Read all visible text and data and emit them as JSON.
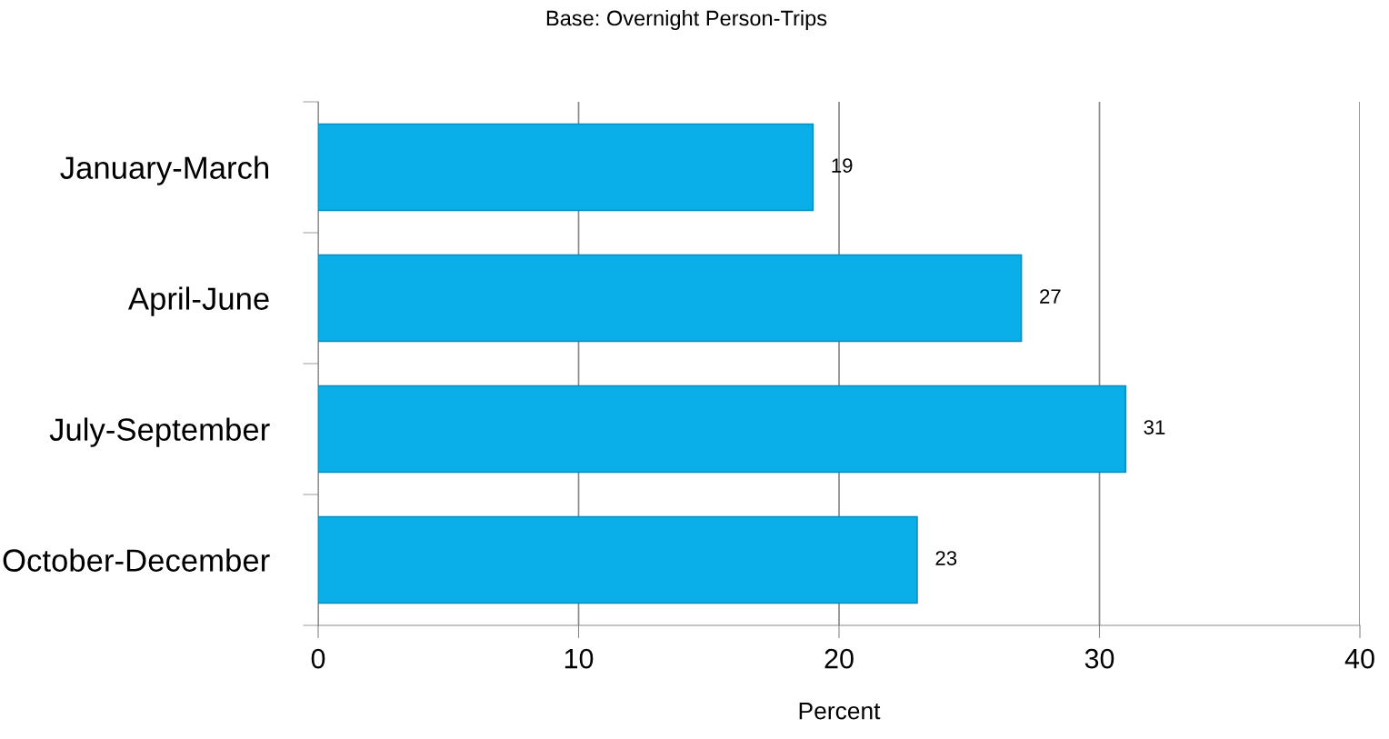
{
  "chart_data": {
    "type": "bar",
    "orientation": "horizontal",
    "title": "Base: Overnight Person-Trips",
    "xlabel": "Percent",
    "categories": [
      "January-March",
      "April-June",
      "July-September",
      "October-December"
    ],
    "values": [
      19,
      27,
      31,
      23
    ],
    "color": "#0aaee8",
    "xlim": [
      0,
      40
    ],
    "xticks": [
      0,
      10,
      20,
      30,
      40
    ],
    "grid": "x",
    "data_labels": true
  }
}
